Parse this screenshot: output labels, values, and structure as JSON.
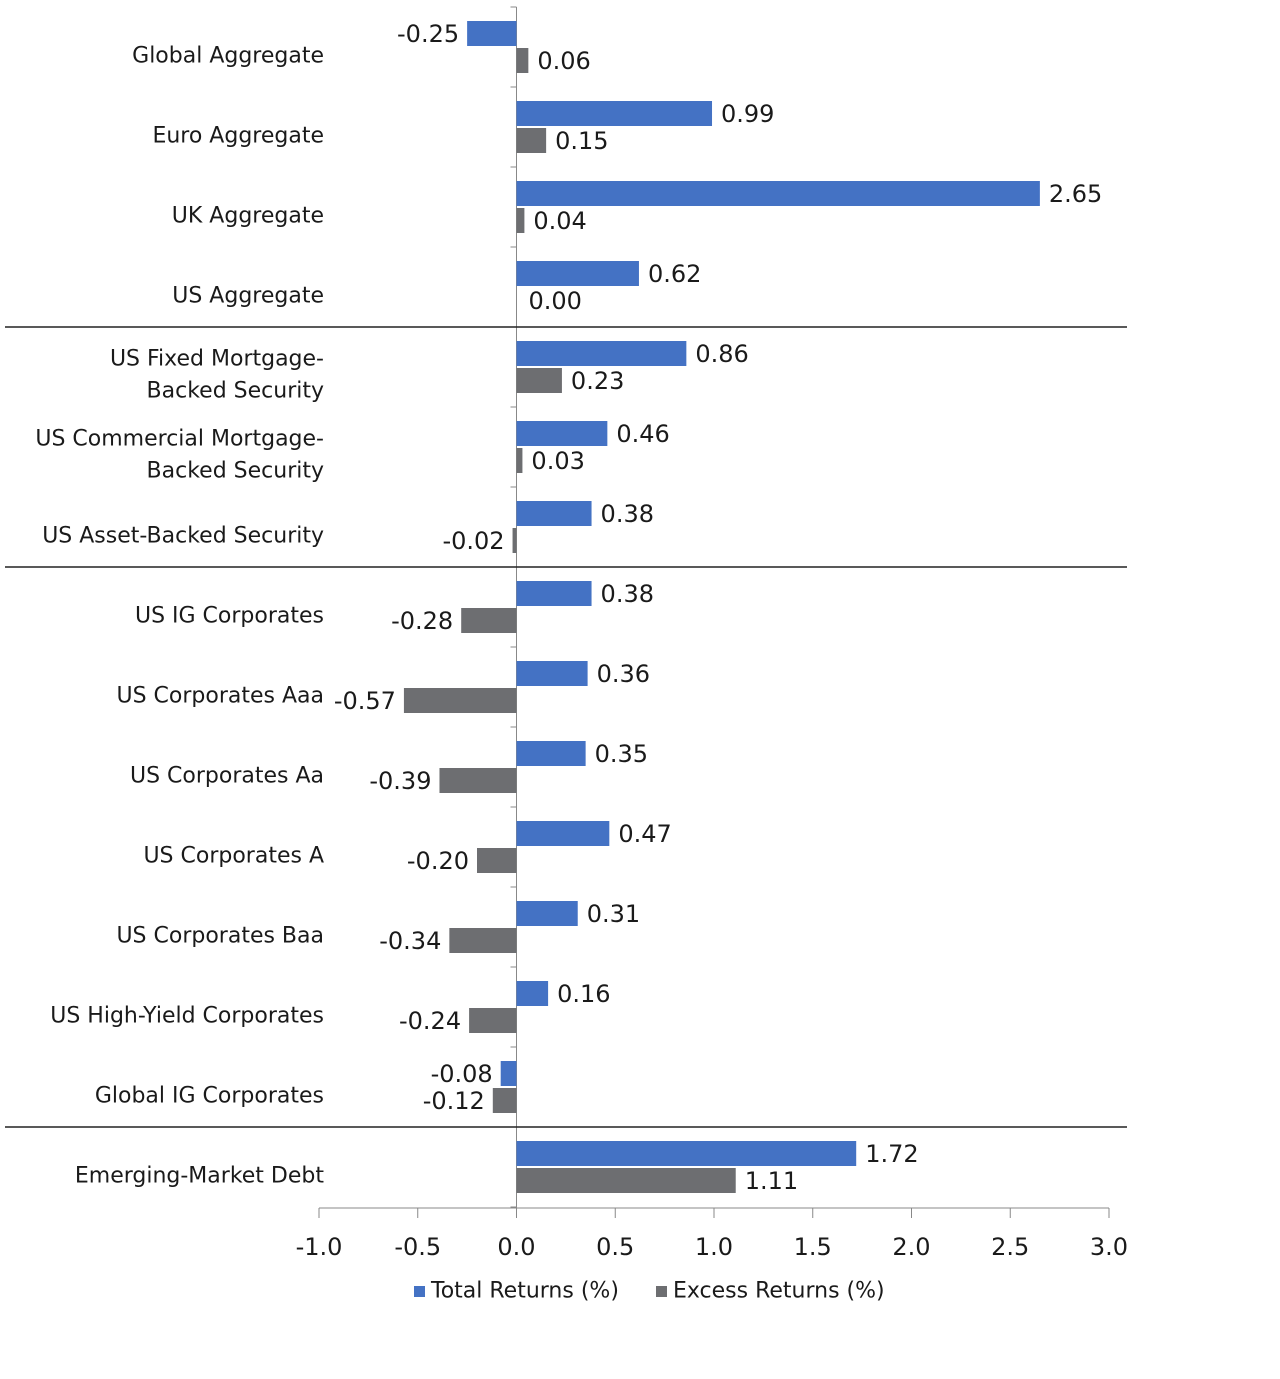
{
  "chart_data": {
    "type": "bar",
    "orientation": "horizontal",
    "categories": [
      [
        "Global Aggregate"
      ],
      [
        "Euro Aggregate"
      ],
      [
        "UK Aggregate"
      ],
      [
        "US Aggregate"
      ],
      [
        "US Fixed Mortgage-",
        "Backed Security"
      ],
      [
        "US Commercial Mortgage-",
        "Backed Security"
      ],
      [
        "US Asset-Backed Security"
      ],
      [
        "US IG Corporates"
      ],
      [
        "US Corporates Aaa"
      ],
      [
        "US Corporates Aa"
      ],
      [
        "US Corporates A"
      ],
      [
        "US Corporates Baa"
      ],
      [
        "US High-Yield Corporates"
      ],
      [
        "Global IG Corporates"
      ],
      [
        "Emerging-Market Debt"
      ]
    ],
    "series": [
      {
        "name": "Total Returns (%)",
        "color": "#4472C4",
        "values": [
          -0.25,
          0.99,
          2.65,
          0.62,
          0.86,
          0.46,
          0.38,
          0.38,
          0.36,
          0.35,
          0.47,
          0.31,
          0.16,
          -0.08,
          1.72
        ]
      },
      {
        "name": "Excess Returns (%)",
        "color": "#6D6E71",
        "values": [
          0.06,
          0.15,
          0.04,
          0.0,
          0.23,
          0.03,
          -0.02,
          -0.28,
          -0.57,
          -0.39,
          -0.2,
          -0.34,
          -0.24,
          -0.12,
          1.11
        ]
      }
    ],
    "group_separators_after": [
      3,
      6,
      13
    ],
    "xlim": [
      -1.0,
      3.0
    ],
    "xticks": [
      "-1.0",
      "-0.5",
      "0.0",
      "0.5",
      "1.0",
      "1.5",
      "2.0",
      "2.5",
      "3.0"
    ],
    "grid": false,
    "legend": "bottom",
    "data_labels": true
  }
}
